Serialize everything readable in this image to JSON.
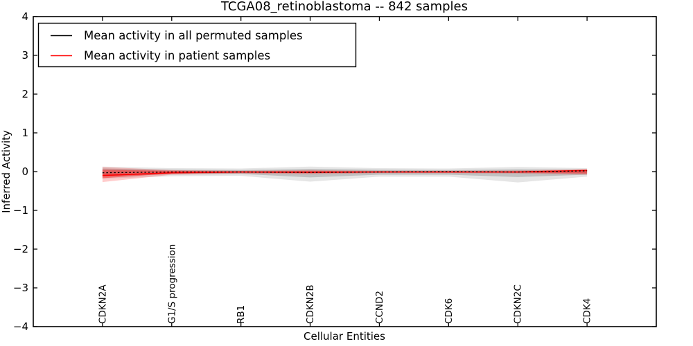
{
  "chart_data": {
    "type": "line",
    "title": "TCGA08_retinoblastoma -- 842 samples",
    "xlabel": "Cellular Entities",
    "ylabel": "Inferred Activity",
    "xlim": [
      -1,
      8
    ],
    "ylim": [
      -4,
      4
    ],
    "yticks": [
      -4,
      -3,
      -2,
      -1,
      0,
      1,
      2,
      3,
      4
    ],
    "grid": false,
    "categories": [
      "CDKN2A",
      "G1/S progression",
      "RB1",
      "CDKN2B",
      "CCND2",
      "CDK6",
      "CDKN2C",
      "CDK4"
    ],
    "series": [
      {
        "id": "permuted",
        "name": "Mean activity in all permuted samples",
        "color": "#000000",
        "style": "dashed",
        "width": 1.3,
        "values": [
          -0.03,
          -0.01,
          -0.01,
          -0.02,
          -0.01,
          0.0,
          -0.01,
          0.02
        ]
      },
      {
        "id": "patient",
        "name": "Mean activity in patient samples",
        "color": "#ff0000",
        "style": "solid",
        "width": 1.6,
        "values": [
          -0.1,
          -0.03,
          -0.01,
          -0.02,
          -0.01,
          -0.01,
          -0.01,
          0.03
        ]
      }
    ],
    "bands": [
      {
        "name": "permuted-std-outer",
        "color": "#000000",
        "opacity": 0.1,
        "upper": [
          0.13,
          0.09,
          0.08,
          0.13,
          0.09,
          0.08,
          0.12,
          0.09
        ],
        "lower": [
          -0.18,
          -0.12,
          -0.11,
          -0.26,
          -0.13,
          -0.13,
          -0.28,
          -0.13
        ]
      },
      {
        "name": "permuted-std-inner",
        "color": "#000000",
        "opacity": 0.16,
        "upper": [
          0.08,
          0.05,
          0.04,
          0.07,
          0.05,
          0.04,
          0.06,
          0.05
        ],
        "lower": [
          -0.12,
          -0.07,
          -0.06,
          -0.15,
          -0.08,
          -0.08,
          -0.14,
          -0.08
        ]
      },
      {
        "name": "patient-std-outer",
        "color": "#ff0000",
        "opacity": 0.2,
        "upper": [
          0.12,
          0.04,
          0.02,
          0.04,
          0.02,
          0.02,
          0.03,
          0.07
        ],
        "lower": [
          -0.27,
          -0.08,
          -0.05,
          -0.07,
          -0.04,
          -0.04,
          -0.05,
          -0.08
        ]
      },
      {
        "name": "patient-sem-inner",
        "color": "#ff0000",
        "opacity": 0.4,
        "upper": [
          0.05,
          0.02,
          0.01,
          0.02,
          0.01,
          0.01,
          0.01,
          0.04
        ],
        "lower": [
          -0.17,
          -0.05,
          -0.03,
          -0.04,
          -0.02,
          -0.02,
          -0.03,
          -0.05
        ]
      }
    ],
    "legend": {
      "position": "upper-left",
      "entries": [
        "Mean activity in all permuted samples",
        "Mean activity in patient samples"
      ]
    }
  }
}
